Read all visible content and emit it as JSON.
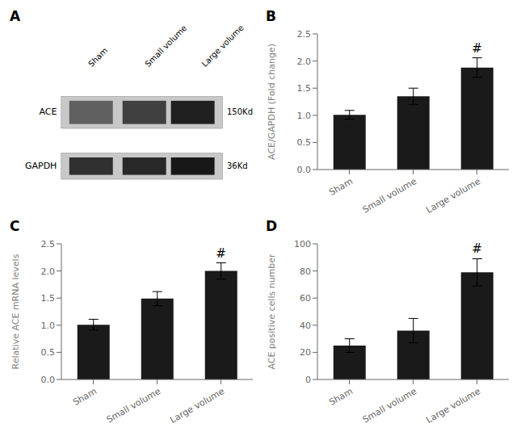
{
  "chart_data": [
    {
      "type": "blot",
      "title": "A",
      "categories": [
        "Sham",
        "Small volume",
        "Large volume"
      ],
      "color": "#c8c8c8",
      "series": [
        {
          "name": "ACE",
          "colors": [
            "#606060",
            "#404040",
            "#202020"
          ]
        },
        {
          "name": "GAPDH",
          "colors": [
            "#303030",
            "#282828",
            "#181818"
          ]
        }
      ],
      "annotations": [
        "150Kd",
        "36Kd"
      ]
    },
    {
      "type": "bar",
      "title": "B",
      "categories": [
        "Sham",
        "Small volume",
        "Large volume"
      ],
      "values": [
        1.01,
        1.35,
        1.88
      ],
      "errors": [
        0.08,
        0.15,
        0.18
      ],
      "ylabel": "ACE/GAPDH (Fold change)",
      "color": "#1a1a1a",
      "ylim": [
        0,
        2.5
      ],
      "yticks": [
        {
          "value": 0,
          "label": "0.0"
        },
        0.5,
        {
          "value": 1,
          "label": "1.0"
        },
        1.5,
        {
          "value": 2,
          "label": "2.0"
        },
        2.5
      ],
      "annotations": [
        {
          "text": "#",
          "category": "Large volume"
        }
      ]
    },
    {
      "type": "bar",
      "title": "C",
      "categories": [
        "Sham",
        "Small volume",
        "Large volume"
      ],
      "values": [
        1.01,
        1.49,
        2.0
      ],
      "errors": [
        0.1,
        0.13,
        0.15
      ],
      "ylabel": "Relative ACE mRNA levels",
      "color": "#1a1a1a",
      "ylim": [
        0,
        2.5
      ],
      "yticks": [
        {
          "value": 0,
          "label": "0.0"
        },
        0.5,
        {
          "value": 1,
          "label": "1.0"
        },
        1.5,
        {
          "value": 2,
          "label": "2.0"
        },
        2.5
      ],
      "annotations": [
        {
          "text": "#",
          "category": "Large volume"
        }
      ]
    },
    {
      "type": "bar",
      "title": "D",
      "categories": [
        "Sham",
        "Small volume",
        "Large volume"
      ],
      "values": [
        25,
        36,
        79
      ],
      "errors": [
        5,
        9,
        10
      ],
      "ylabel": "ACE positive cells number",
      "color": "#1a1a1a",
      "ylim": [
        0,
        100
      ],
      "yticks": [
        0,
        20,
        40,
        60,
        80,
        100
      ],
      "annotations": [
        {
          "text": "#",
          "category": "Large volume"
        }
      ]
    }
  ]
}
